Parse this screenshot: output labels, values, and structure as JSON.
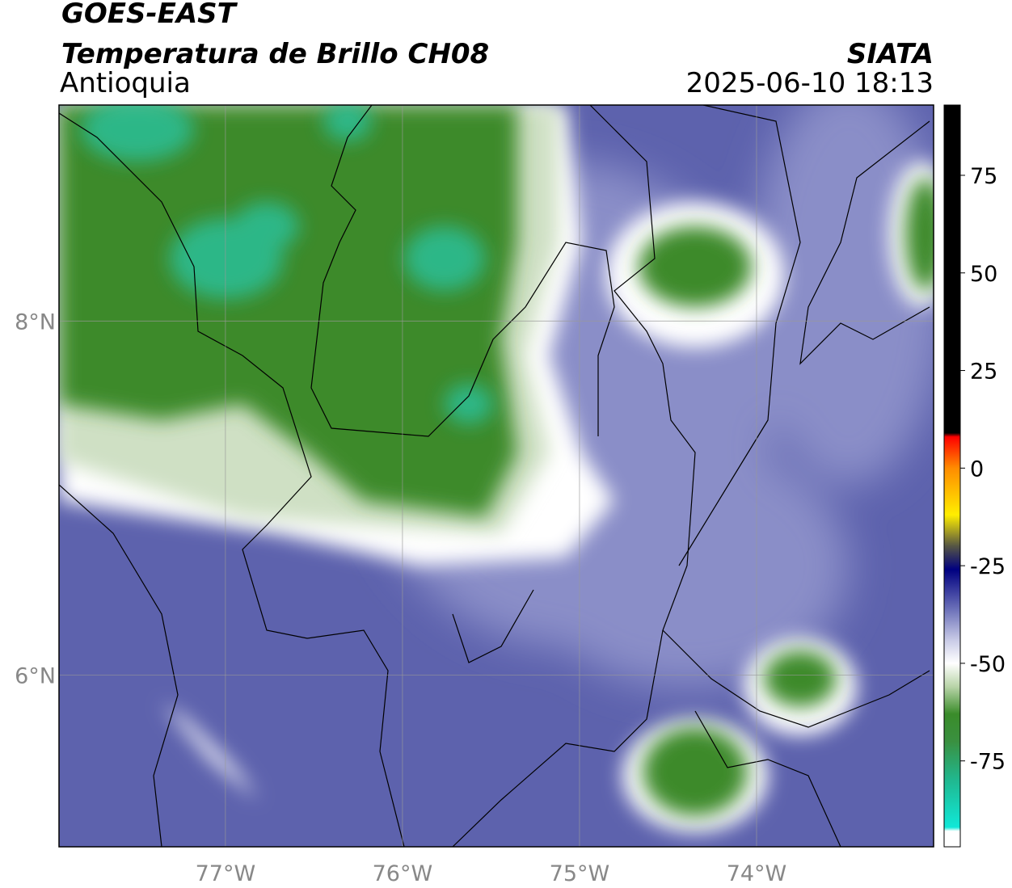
{
  "header": {
    "title": "GOES-EAST",
    "subtitle": "Temperatura de Brillo CH08",
    "source": "SIATA",
    "region": "Antioquia",
    "timestamp": "2025-06-10 18:13"
  },
  "map": {
    "xlim": [
      -77.94,
      -73.0
    ],
    "ylim": [
      5.03,
      9.22
    ],
    "xticks": [
      {
        "value": -77,
        "label": "77°W"
      },
      {
        "value": -76,
        "label": "76°W"
      },
      {
        "value": -75,
        "label": "75°W"
      },
      {
        "value": -74,
        "label": "74°W"
      }
    ],
    "yticks": [
      {
        "value": 8,
        "label": "8°N"
      },
      {
        "value": 6,
        "label": "6°N"
      }
    ],
    "grid": true
  },
  "colorbar": {
    "lim": [
      -97,
      93
    ],
    "ticks": [
      75,
      50,
      25,
      0,
      -25,
      -50,
      -75
    ],
    "stops": [
      {
        "value": 93,
        "color": "#000000"
      },
      {
        "value": 9,
        "color": "#000000"
      },
      {
        "value": 8,
        "color": "#ff0000"
      },
      {
        "value": 0,
        "color": "#ff8c00"
      },
      {
        "value": -12,
        "color": "#ffee00"
      },
      {
        "value": -20,
        "color": "#555544"
      },
      {
        "value": -26,
        "color": "#000080"
      },
      {
        "value": -36,
        "color": "#6a6fb8"
      },
      {
        "value": -44,
        "color": "#c8cae6"
      },
      {
        "value": -50,
        "color": "#ffffff"
      },
      {
        "value": -56,
        "color": "#b8d4a8"
      },
      {
        "value": -63,
        "color": "#3a8c2a"
      },
      {
        "value": -70,
        "color": "#3a9040"
      },
      {
        "value": -80,
        "color": "#20b890"
      },
      {
        "value": -92,
        "color": "#10e8d8"
      },
      {
        "value": -93,
        "color": "#ffffff"
      },
      {
        "value": -97,
        "color": "#ffffff"
      }
    ]
  }
}
